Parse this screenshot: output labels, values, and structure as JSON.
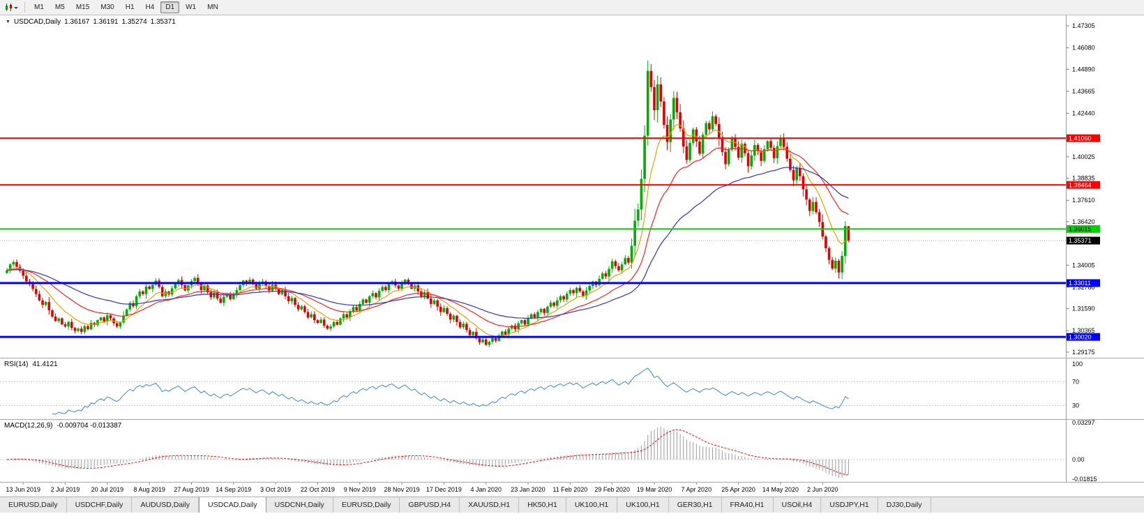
{
  "toolbar": {
    "timeframes": [
      "M1",
      "M5",
      "M15",
      "M30",
      "H1",
      "H4",
      "D1",
      "W1",
      "MN"
    ],
    "active_timeframe": "D1"
  },
  "header": {
    "symbol": "USDCAD,Daily",
    "open": "1.36167",
    "high": "1.36191",
    "low": "1.35274",
    "close": "1.35371"
  },
  "rsi": {
    "name": "RSI(14)",
    "value": "41.4121",
    "period": 14,
    "levels": [
      "100",
      "70",
      "30"
    ],
    "line_color": "#4a90d9"
  },
  "macd": {
    "name": "MACD(12,26,9)",
    "values": "-0.009704 -0.013387",
    "axis": [
      "0.03297",
      "0.00",
      "-0.01815"
    ],
    "hist_color": "#9a9a9a",
    "signal_color": "#ff0000"
  },
  "tabs": {
    "items": [
      "EURUSD,Daily",
      "USDCHF,Daily",
      "AUDUSD,Daily",
      "USDCAD,Daily",
      "USDCNH,Daily",
      "EURUSD,Daily",
      "GBPUSD,H4",
      "XAUUSD,H1",
      "HK50,H1",
      "UK100,H1",
      "UK100,H1",
      "GER30,H1",
      "FRA40,H1",
      "USOil,H4",
      "USDJPY,H1",
      "DJ30,Daily"
    ],
    "active_index": 3
  },
  "chart_data": {
    "type": "candlestick",
    "symbol": "USDCAD",
    "timeframe": "Daily",
    "y_range": [
      1.29175,
      1.47305
    ],
    "up_color": "#00ad00",
    "down_color": "#e00000",
    "y_axis_ticks": [
      "1.47305",
      "1.46080",
      "1.44890",
      "1.43665",
      "1.42440",
      "1.40025",
      "1.38835",
      "1.37610",
      "1.36420",
      "1.34005",
      "1.32780",
      "1.31590",
      "1.30365",
      "1.29175"
    ],
    "x_tick_labels": [
      "13 Jun 2019",
      "2 Jul 2019",
      "20 Jul 2019",
      "8 Aug 2019",
      "27 Aug 2019",
      "14 Sep 2019",
      "3 Oct 2019",
      "22 Oct 2019",
      "9 Nov 2019",
      "28 Nov 2019",
      "17 Dec 2019",
      "4 Jan 2020",
      "23 Jan 2020",
      "11 Feb 2020",
      "29 Feb 2020",
      "19 Mar 2020",
      "7 Apr 2020",
      "25 Apr 2020",
      "14 May 2020",
      "2 Jun 2020"
    ],
    "x_tick_indices": [
      5,
      18,
      31,
      44,
      57,
      70,
      83,
      96,
      109,
      122,
      135,
      148,
      161,
      174,
      187,
      200,
      213,
      226,
      239,
      252
    ],
    "horizontal_levels": [
      {
        "price": 1.4106,
        "label": "1.41060",
        "color": "#ff0000",
        "text_color": "#ffffff",
        "width": 2
      },
      {
        "price": 1.38464,
        "label": "1.38464",
        "color": "#ff0000",
        "text_color": "#ffffff",
        "width": 2
      },
      {
        "price": 1.36015,
        "label": "1.36015",
        "color": "#00d300",
        "text_color": "#000000",
        "width": 2
      },
      {
        "price": 1.33011,
        "label": "1.33011",
        "color": "#0000ff",
        "text_color": "#ffffff",
        "width": 3
      },
      {
        "price": 1.3002,
        "label": "1.30020",
        "color": "#0000ff",
        "text_color": "#ffffff",
        "width": 3
      }
    ],
    "current_price": {
      "value": 1.35371,
      "label": "1.35371"
    },
    "last_candle": {
      "open": 1.36167,
      "high": 1.36191,
      "low": 1.35274,
      "close": 1.35371
    },
    "moving_averages": [
      {
        "period": 10,
        "color": "#e8a200"
      },
      {
        "period": 25,
        "color": "#ff2020"
      },
      {
        "period": 52,
        "color": "#3030cc"
      }
    ],
    "closes": [
      1.3372,
      1.3405,
      1.3418,
      1.3392,
      1.337,
      1.3342,
      1.331,
      1.3295,
      1.3268,
      1.324,
      1.3205,
      1.318,
      1.3196,
      1.315,
      1.3115,
      1.309,
      1.3105,
      1.3072,
      1.306,
      1.3085,
      1.3052,
      1.3035,
      1.3048,
      1.303,
      1.3062,
      1.3045,
      1.308,
      1.3068,
      1.3095,
      1.311,
      1.3088,
      1.3122,
      1.3105,
      1.3078,
      1.306,
      1.3082,
      1.312,
      1.3155,
      1.319,
      1.3172,
      1.3228,
      1.3255,
      1.324,
      1.3282,
      1.3268,
      1.3292,
      1.3315,
      1.328,
      1.3228,
      1.3255,
      1.3238,
      1.3272,
      1.3295,
      1.3318,
      1.329,
      1.326,
      1.3288,
      1.3312,
      1.333,
      1.3295,
      1.3262,
      1.3288,
      1.325,
      1.3222,
      1.3248,
      1.3215,
      1.3192,
      1.3225,
      1.324,
      1.3212,
      1.3235,
      1.3262,
      1.329,
      1.3315,
      1.3298,
      1.332,
      1.3295,
      1.327,
      1.3296,
      1.331,
      1.3285,
      1.326,
      1.3292,
      1.327,
      1.324,
      1.3262,
      1.3228,
      1.32,
      1.3218,
      1.318,
      1.3155,
      1.3172,
      1.314,
      1.311,
      1.3128,
      1.3095,
      1.308,
      1.3098,
      1.3065,
      1.3048,
      1.306,
      1.3085,
      1.307,
      1.3105,
      1.3128,
      1.311,
      1.3145,
      1.3168,
      1.315,
      1.3185,
      1.321,
      1.3192,
      1.3228,
      1.3245,
      1.3222,
      1.3258,
      1.328,
      1.3262,
      1.3295,
      1.331,
      1.3288,
      1.327,
      1.3298,
      1.332,
      1.3295,
      1.327,
      1.3288,
      1.3255,
      1.3228,
      1.325,
      1.3215,
      1.3185,
      1.3205,
      1.317,
      1.314,
      1.3162,
      1.313,
      1.3098,
      1.312,
      1.3085,
      1.3055,
      1.3075,
      1.304,
      1.3012,
      1.303,
      1.2995,
      1.2972,
      1.2988,
      1.2958,
      1.2975,
      1.2995,
      1.298,
      1.301,
      1.3032,
      1.3015,
      1.3048,
      1.3065,
      1.3045,
      1.3078,
      1.3095,
      1.3072,
      1.3105,
      1.3128,
      1.311,
      1.314,
      1.3158,
      1.3135,
      1.317,
      1.3192,
      1.3175,
      1.3205,
      1.3228,
      1.321,
      1.3242,
      1.3262,
      1.3245,
      1.3275,
      1.3255,
      1.323,
      1.326,
      1.3285,
      1.331,
      1.329,
      1.3325,
      1.3355,
      1.3338,
      1.338,
      1.3422,
      1.3395,
      1.3372,
      1.3405,
      1.344,
      1.3415,
      1.3508,
      1.3648,
      1.371,
      1.388,
      1.412,
      1.448,
      1.439,
      1.4262,
      1.4405,
      1.431,
      1.418,
      1.4085,
      1.421,
      1.433,
      1.425,
      1.416,
      1.406,
      1.3985,
      1.408,
      1.4155,
      1.4088,
      1.402,
      1.4125,
      1.419,
      1.4155,
      1.4228,
      1.4185,
      1.4105,
      1.403,
      1.3962,
      1.4042,
      1.411,
      1.4058,
      1.3998,
      1.4075,
      1.4022,
      1.395,
      1.401,
      1.4068,
      1.4035,
      1.398,
      1.4045,
      1.409,
      1.4052,
      1.3995,
      1.4062,
      1.4108,
      1.4058,
      1.3992,
      1.393,
      1.3872,
      1.394,
      1.3895,
      1.3822,
      1.3765,
      1.3702,
      1.3752,
      1.3695,
      1.364,
      1.356,
      1.3495,
      1.343,
      1.3382,
      1.3425,
      1.336,
      1.3452,
      1.3618,
      1.3537
    ]
  }
}
